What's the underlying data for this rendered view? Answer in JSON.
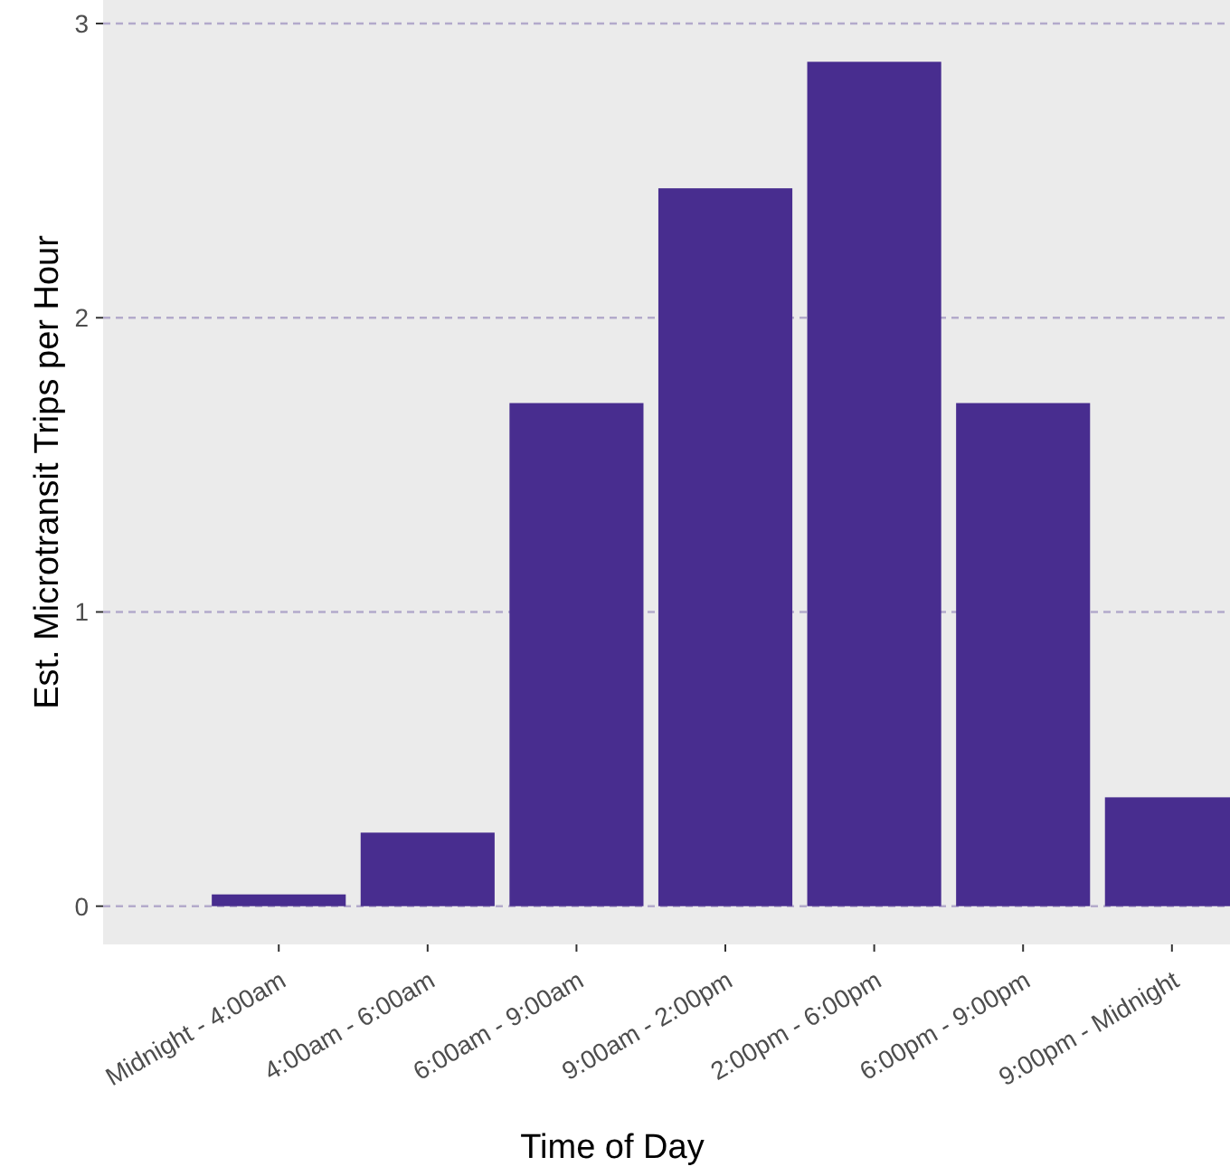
{
  "chart_data": {
    "type": "bar",
    "xlabel": "Time of Day",
    "ylabel": "Est. Microtransit Trips per Hour",
    "categories": [
      "Midnight - 4:00am",
      "4:00am - 6:00am",
      "6:00am - 9:00am",
      "9:00am - 2:00pm",
      "2:00pm - 6:00pm",
      "6:00pm - 9:00pm",
      "9:00pm - Midnight"
    ],
    "values": [
      0.04,
      0.25,
      1.71,
      2.44,
      2.87,
      1.71,
      0.37
    ],
    "color": "#482d8f",
    "ylim": [
      -0.13,
      3.08
    ],
    "yticks": [
      0,
      1,
      2,
      3
    ],
    "grid": "y"
  }
}
